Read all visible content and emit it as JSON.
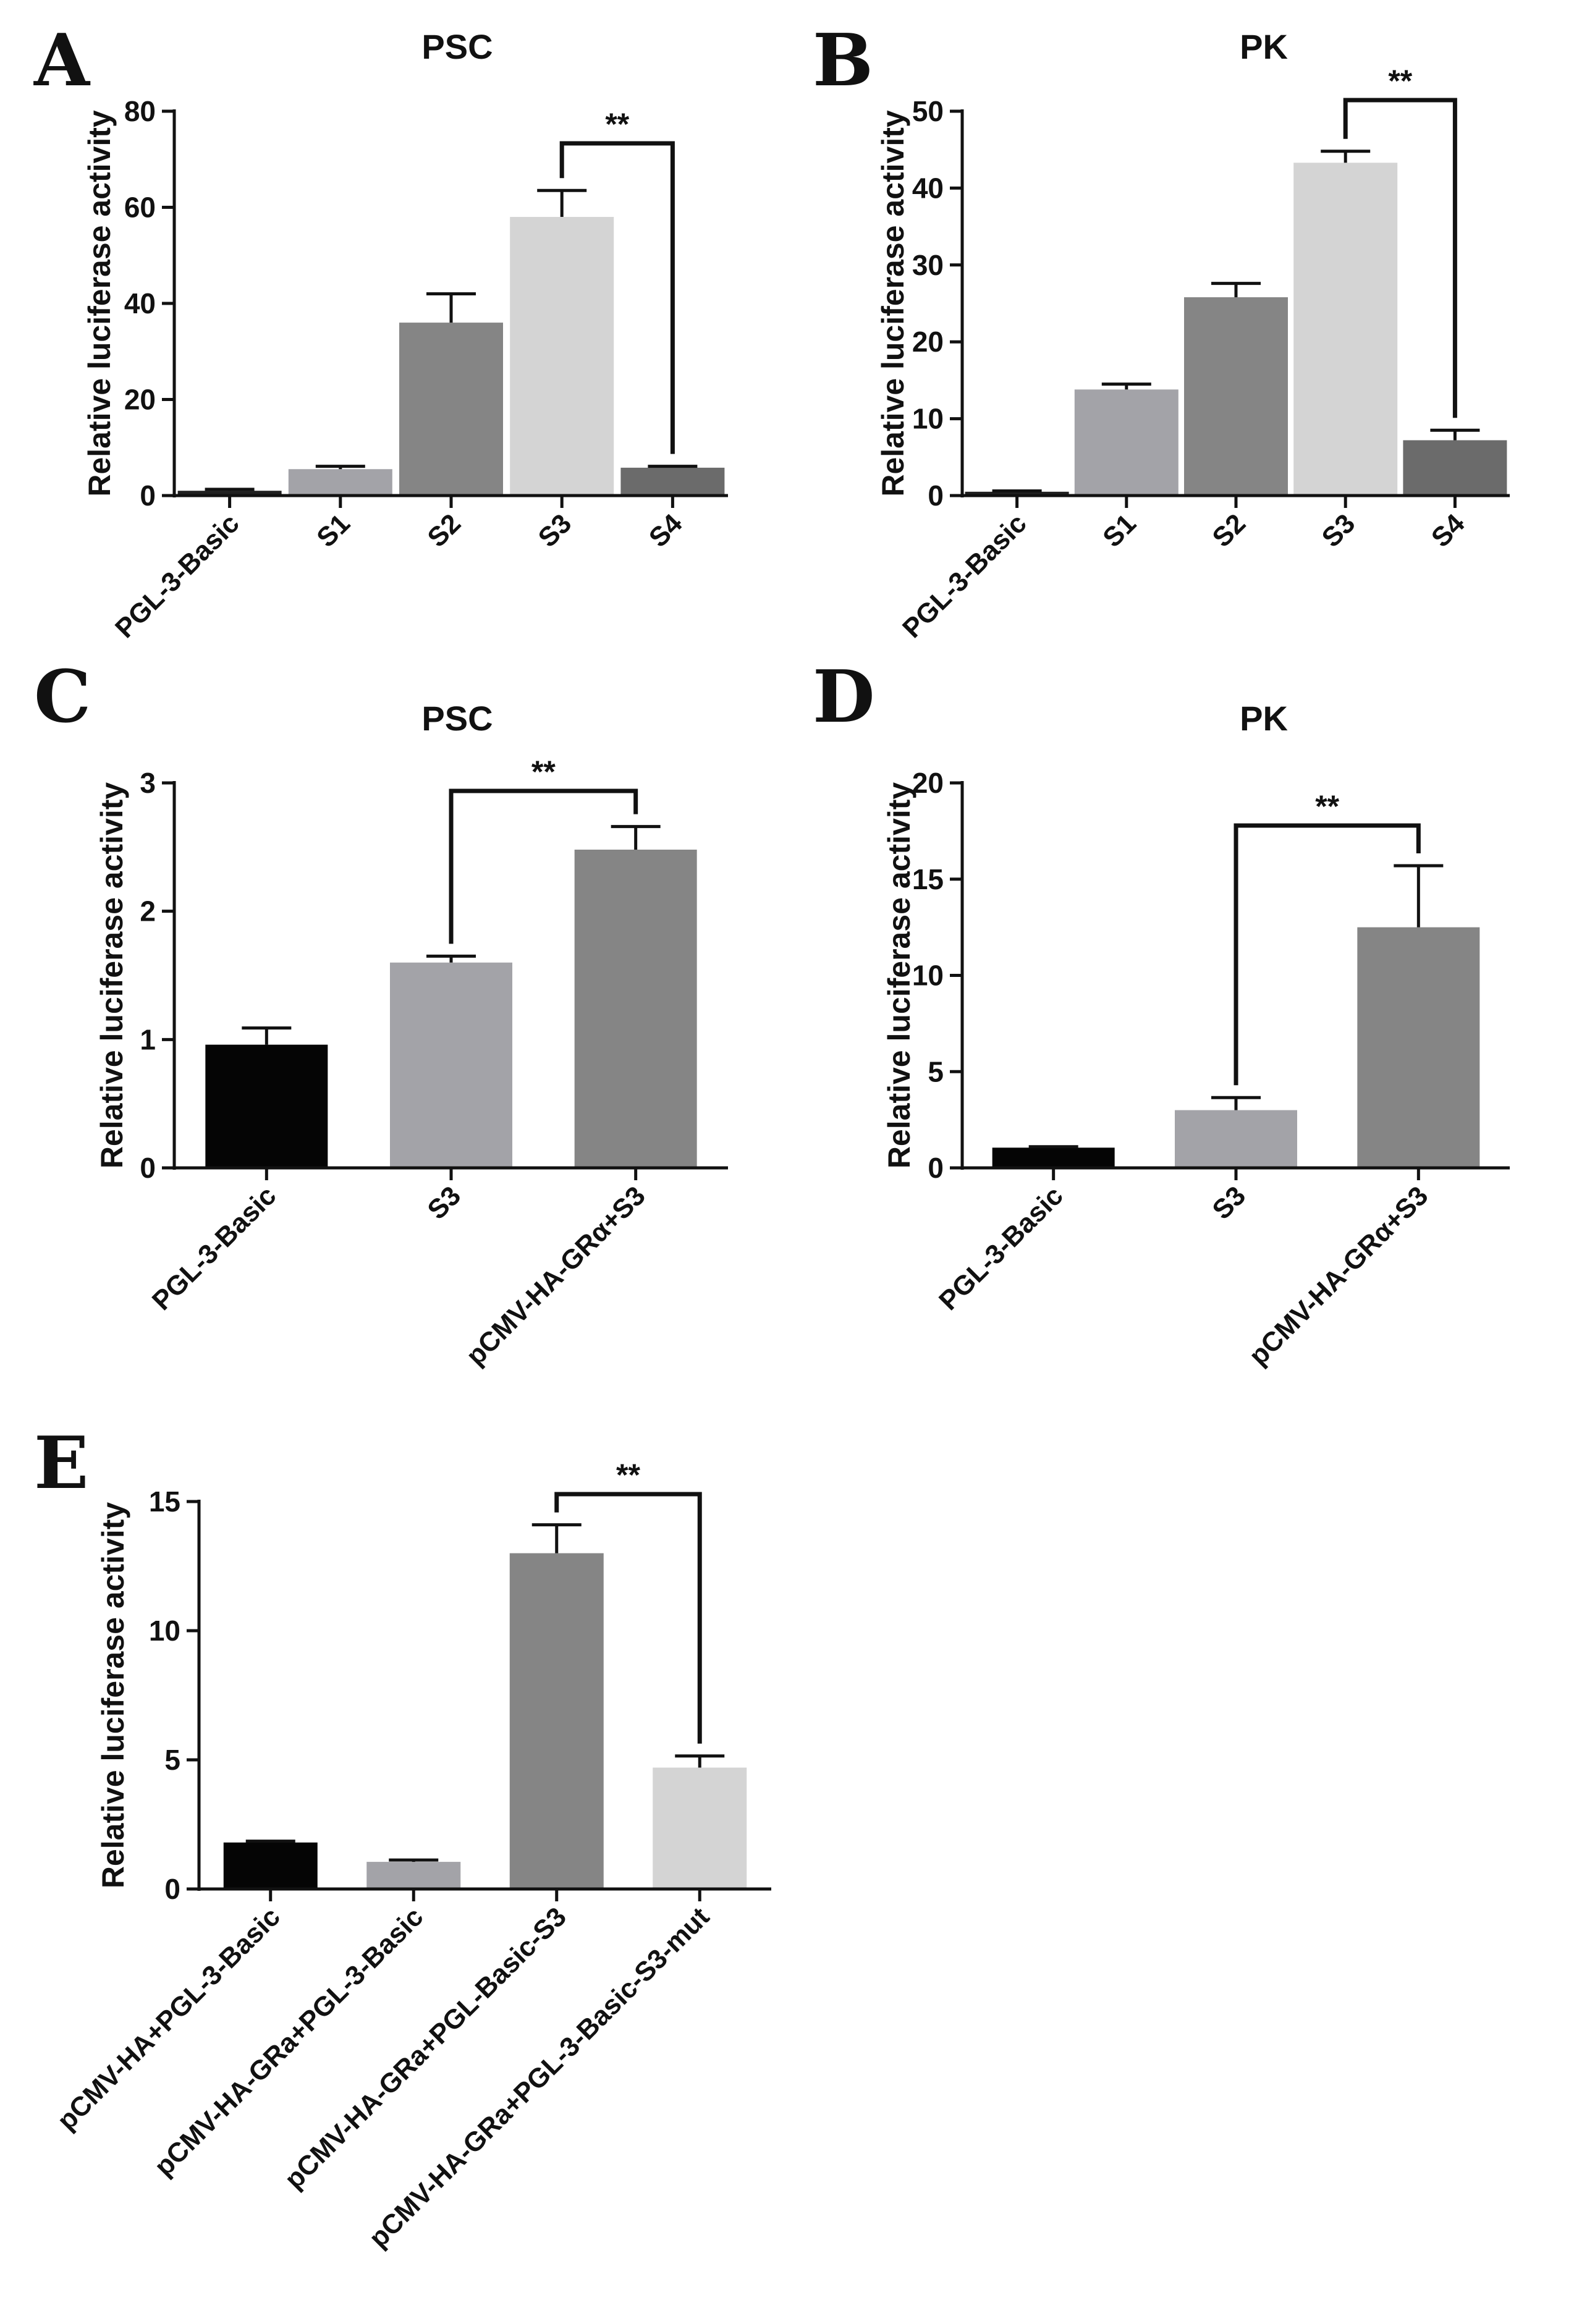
{
  "chart_data": [
    {
      "panel": "A",
      "type": "bar",
      "title": "PSC",
      "xlabel": "",
      "ylabel": "Relative luciferase activity",
      "ylim": [
        0,
        80
      ],
      "yticks": [
        0,
        20,
        40,
        60,
        80
      ],
      "categories": [
        "PGL-3-Basic",
        "S1",
        "S2",
        "S3",
        "S4"
      ],
      "values": [
        1,
        5.5,
        36,
        58,
        5.8
      ],
      "errors": [
        0.3,
        0.6,
        6,
        5.5,
        0.3
      ],
      "colors": [
        "#202020",
        "#a3a3a8",
        "#858585",
        "#d4d4d4",
        "#6b6b6b"
      ],
      "significance": [
        {
          "from": 3,
          "to": 4,
          "label": "**"
        }
      ]
    },
    {
      "panel": "B",
      "type": "bar",
      "title": "PK",
      "xlabel": "",
      "ylabel": "Relative luciferase activity",
      "ylim": [
        0,
        50
      ],
      "yticks": [
        0,
        10,
        20,
        30,
        40,
        50
      ],
      "categories": [
        "PGL-3-Basic",
        "S1",
        "S2",
        "S3",
        "S4"
      ],
      "values": [
        0.5,
        13.8,
        25.8,
        43.3,
        7.2
      ],
      "errors": [
        0.1,
        0.7,
        1.8,
        1.5,
        1.3
      ],
      "colors": [
        "#202020",
        "#a3a3a8",
        "#858585",
        "#d4d4d4",
        "#6b6b6b"
      ],
      "significance": [
        {
          "from": 3,
          "to": 4,
          "label": "**"
        }
      ]
    },
    {
      "panel": "C",
      "type": "bar",
      "title": "PSC",
      "xlabel": "",
      "ylabel": "Relative luciferase activity",
      "ylim": [
        0,
        3
      ],
      "yticks": [
        0,
        1,
        2,
        3
      ],
      "categories": [
        "PGL-3-Basic",
        "S3",
        "pCMV-HA-GRα+S3"
      ],
      "values": [
        0.96,
        1.6,
        2.48
      ],
      "errors": [
        0.13,
        0.05,
        0.18
      ],
      "colors": [
        "#050505",
        "#a3a3a8",
        "#858585"
      ],
      "significance": [
        {
          "from": 1,
          "to": 2,
          "label": "**"
        }
      ]
    },
    {
      "panel": "D",
      "type": "bar",
      "title": "PK",
      "xlabel": "",
      "ylabel": "Relative luciferase activity",
      "ylim": [
        0,
        20
      ],
      "yticks": [
        0,
        5,
        10,
        15,
        20
      ],
      "categories": [
        "PGL-3-Basic",
        "S3",
        "pCMV-HA-GRα+S3"
      ],
      "values": [
        1.05,
        3,
        12.5
      ],
      "errors": [
        0.05,
        0.65,
        3.2
      ],
      "colors": [
        "#050505",
        "#a3a3a8",
        "#858585"
      ],
      "significance": [
        {
          "from": 1,
          "to": 2,
          "label": "**"
        }
      ]
    },
    {
      "panel": "E",
      "type": "bar",
      "title": "",
      "xlabel": "",
      "ylabel": "Relative luciferase activity",
      "ylim": [
        0,
        15
      ],
      "yticks": [
        0,
        5,
        10,
        15
      ],
      "categories": [
        "pCMV-HA+PGL-3-Basic",
        "pCMV-HA-GRa+PGL-3-Basic",
        "pCMV-HA-GRa+PGL-Basic-S3",
        "pCMV-HA-GRa+PGL-3-Basic-S3-mut"
      ],
      "values": [
        1.8,
        1.05,
        13,
        4.7
      ],
      "errors": [
        0.05,
        0.07,
        1.1,
        0.45
      ],
      "colors": [
        "#050505",
        "#a3a3a8",
        "#858585",
        "#d4d4d4"
      ],
      "significance": [
        {
          "from": 2,
          "to": 3,
          "label": "**"
        }
      ]
    }
  ]
}
